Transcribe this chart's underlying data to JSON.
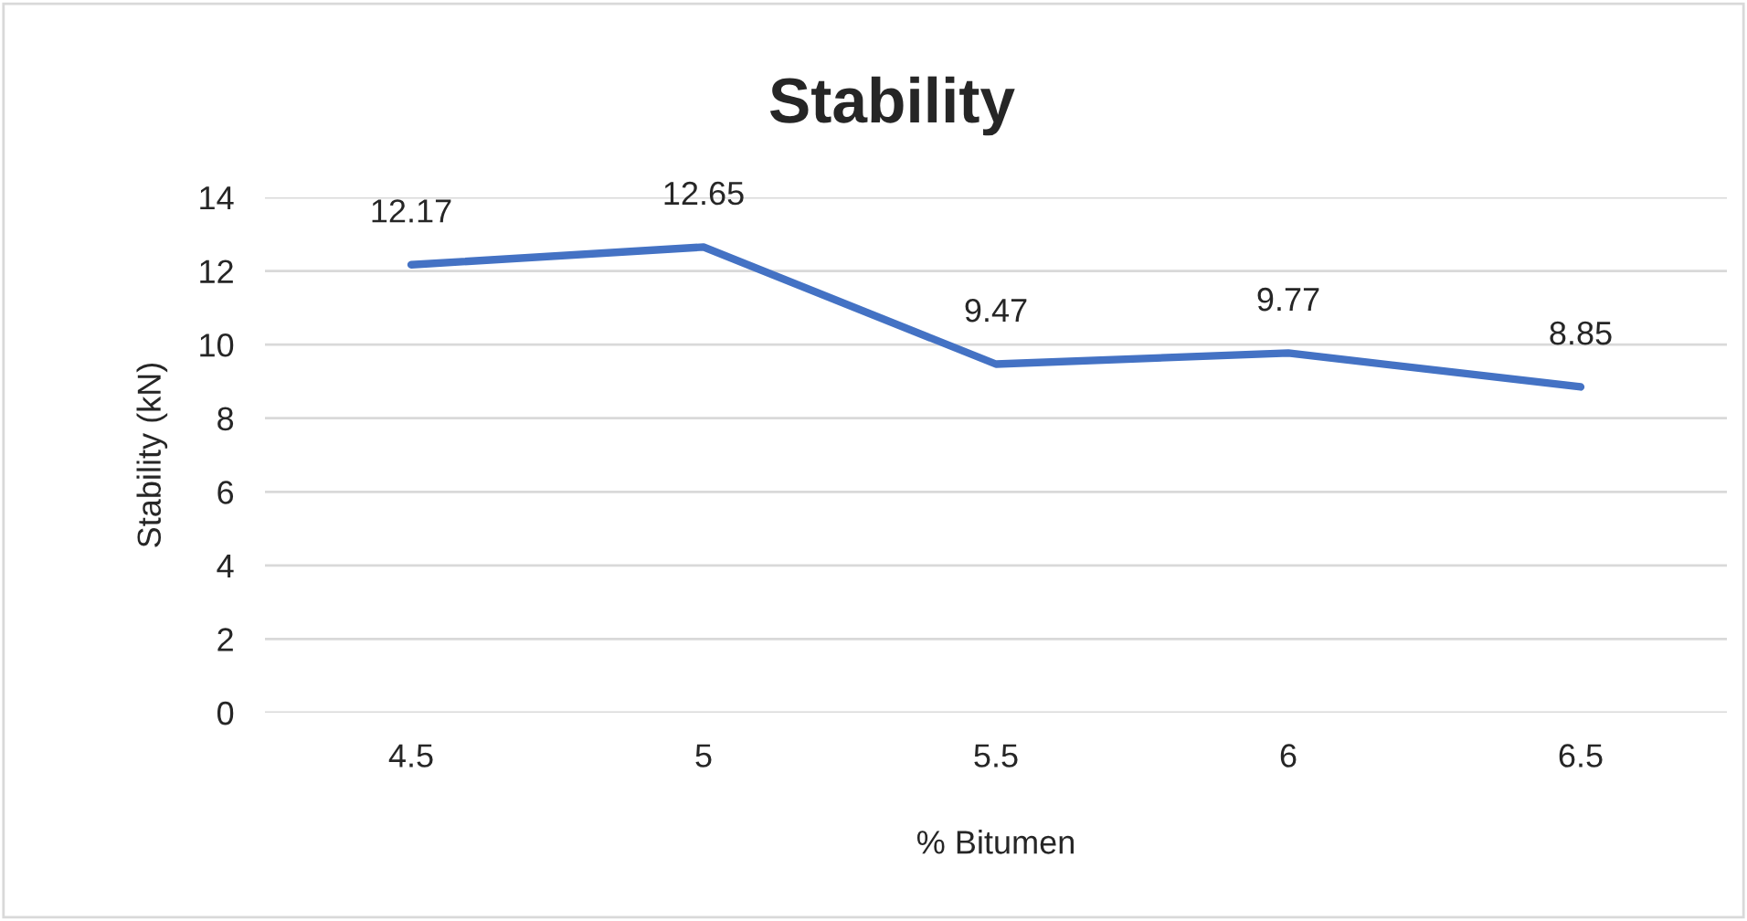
{
  "chart_data": {
    "type": "line",
    "title": "Stability",
    "xlabel": "% Bitumen",
    "ylabel": "Stability (kN)",
    "categories": [
      "4.5",
      "5",
      "5.5",
      "6",
      "6.5"
    ],
    "series": [
      {
        "color": "#4472c4",
        "values": [
          12.17,
          12.65,
          9.47,
          9.77,
          8.85
        ]
      }
    ],
    "ylim": [
      0,
      14
    ],
    "yticks": [
      0,
      2,
      4,
      6,
      8,
      10,
      12,
      14
    ],
    "grid": "y",
    "data_labels": true,
    "marker": "none",
    "line_style": "solid"
  }
}
